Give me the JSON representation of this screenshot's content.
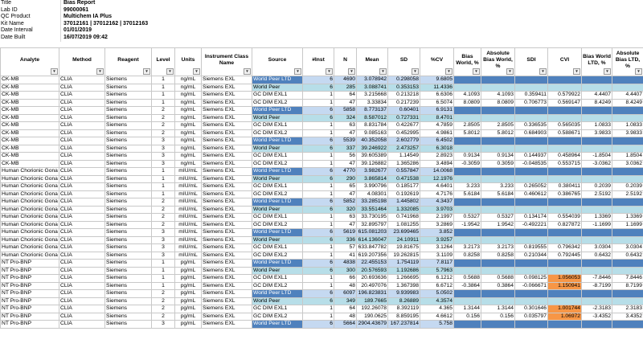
{
  "meta": [
    {
      "key": "Title",
      "value": "Bias Report"
    },
    {
      "key": "Lab ID",
      "value": "99000061"
    },
    {
      "key": "QC Product",
      "value": "Multichem IA Plus"
    },
    {
      "key": "Kit Name",
      "value": "37012161 | 37012162 | 37012163"
    },
    {
      "key": "Date Interval",
      "value": "01/01/2019"
    },
    {
      "key": "Date Built",
      "value": "16/07/2019 09:42"
    }
  ],
  "columns": [
    "Analyte",
    "Method",
    "Reagent",
    "Level",
    "Units",
    "Instrument Class Name",
    "Source",
    "#Inst",
    "N",
    "Mean",
    "SD",
    "%CV",
    "Bias World, %",
    "Absolute Bias World, %",
    "SDI",
    "CVI",
    "Bias World LTD, %",
    "Absolute Bias LTD, %"
  ],
  "colors": {
    "peer_ltd": "#4f81bd",
    "peer": "#b7dee8",
    "light": "#c5d9f1",
    "cvi_highlight": "#f79646"
  },
  "rows": [
    {
      "t": "ltd",
      "c": [
        "CK-MB",
        "CLIA",
        "Siemens",
        "1",
        "ng/mL",
        "Siemens EXL",
        "World Peer LTD",
        "6",
        "4690",
        "3.078942",
        "0.298058",
        "9.6805",
        "",
        "",
        "",
        "",
        "",
        ""
      ]
    },
    {
      "t": "peer",
      "c": [
        "CK-MB",
        "CLIA",
        "Siemens",
        "1",
        "ng/mL",
        "Siemens EXL",
        "World Peer",
        "6",
        "285",
        "3.088741",
        "0.353153",
        "11.4336",
        "",
        "",
        "",
        "",
        "",
        ""
      ]
    },
    {
      "t": "",
      "c": [
        "CK-MB",
        "CLIA",
        "Siemens",
        "1",
        "ng/mL",
        "Siemens EXL",
        "GC DIM EXL1",
        "1",
        "64",
        "3.215668",
        "0.213218",
        "6.6306",
        "4.1093",
        "4.1093",
        "0.359411",
        "0.579922",
        "4.4407",
        "4.4407"
      ]
    },
    {
      "t": "",
      "c": [
        "CK-MB",
        "CLIA",
        "Siemens",
        "1",
        "ng/mL",
        "Siemens EXL",
        "GC DIM EXL2",
        "1",
        "47",
        "3.33834",
        "0.217239",
        "6.5074",
        "8.0809",
        "8.0809",
        "0.706773",
        "0.569147",
        "8.4249",
        "8.4249"
      ]
    },
    {
      "t": "ltd",
      "c": [
        "CK-MB",
        "CLIA",
        "Siemens",
        "2",
        "ng/mL",
        "Siemens EXL",
        "World Peer LTD",
        "6",
        "5858",
        "8.773137",
        "0.60401",
        "6.9131",
        "",
        "",
        "",
        "",
        "",
        ""
      ]
    },
    {
      "t": "peer",
      "c": [
        "CK-MB",
        "CLIA",
        "Siemens",
        "2",
        "ng/mL",
        "Siemens EXL",
        "World Peer",
        "6",
        "324",
        "8.587012",
        "0.727331",
        "8.4701",
        "",
        "",
        "",
        "",
        "",
        ""
      ]
    },
    {
      "t": "",
      "c": [
        "CK-MB",
        "CLIA",
        "Siemens",
        "2",
        "ng/mL",
        "Siemens EXL",
        "GC DIM EXL1",
        "1",
        "63",
        "8.831784",
        "0.422677",
        "4.7859",
        "2.8505",
        "2.8505",
        "0.336535",
        "0.565035",
        "1.0833",
        "1.0833"
      ]
    },
    {
      "t": "",
      "c": [
        "CK-MB",
        "CLIA",
        "Siemens",
        "2",
        "ng/mL",
        "Siemens EXL",
        "GC DIM EXL2",
        "1",
        "47",
        "9.085163",
        "0.452995",
        "4.9861",
        "5.8012",
        "5.8012",
        "0.684903",
        "0.588671",
        "3.9833",
        "3.9833"
      ]
    },
    {
      "t": "ltd",
      "c": [
        "CK-MB",
        "CLIA",
        "Siemens",
        "3",
        "ng/mL",
        "Siemens EXL",
        "World Peer LTD",
        "6",
        "5539",
        "40.352058",
        "2.602779",
        "6.4502",
        "",
        "",
        "",
        "",
        "",
        ""
      ]
    },
    {
      "t": "peer",
      "c": [
        "CK-MB",
        "CLIA",
        "Siemens",
        "3",
        "ng/mL",
        "Siemens EXL",
        "World Peer",
        "6",
        "337",
        "39.246922",
        "2.473257",
        "6.3018",
        "",
        "",
        "",
        "",
        "",
        ""
      ]
    },
    {
      "t": "",
      "c": [
        "CK-MB",
        "CLIA",
        "Siemens",
        "3",
        "ng/mL",
        "Siemens EXL",
        "GC DIM EXL1",
        "1",
        "56",
        "39.605389",
        "1.14549",
        "2.8923",
        "0.9134",
        "0.9134",
        "0.144937",
        "0.458964",
        "-1.8504",
        "1.8504"
      ]
    },
    {
      "t": "",
      "c": [
        "CK-MB",
        "CLIA",
        "Siemens",
        "3",
        "ng/mL",
        "Siemens EXL",
        "GC DIM EXL2",
        "1",
        "47",
        "39.126882",
        "1.365286",
        "3.4894",
        "-0.3059",
        "0.3059",
        "-0.048535",
        "0.553715",
        "-3.0362",
        "3.0362"
      ]
    },
    {
      "t": "ltd",
      "c": [
        "Human Chorionic Gona",
        "CLIA",
        "Siemens",
        "1",
        "mIU/mL",
        "Siemens EXL",
        "World Peer LTD",
        "6",
        "4770",
        "3.982677",
        "0.557847",
        "14.0068",
        "",
        "",
        "",
        "",
        "",
        ""
      ]
    },
    {
      "t": "peer",
      "c": [
        "Human Chorionic Gona",
        "CLIA",
        "Siemens",
        "1",
        "mIU/mL",
        "Siemens EXL",
        "World Peer",
        "6",
        "290",
        "3.865814",
        "0.471538",
        "12.1976",
        "",
        "",
        "",
        "",
        "",
        ""
      ]
    },
    {
      "t": "",
      "c": [
        "Human Chorionic Gona",
        "CLIA",
        "Siemens",
        "1",
        "mIU/mL",
        "Siemens EXL",
        "GC DIM EXL1",
        "1",
        "65",
        "3.990796",
        "0.185177",
        "4.6401",
        "3.233",
        "3.233",
        "0.265052",
        "0.380411",
        "0.2039",
        "0.2039"
      ]
    },
    {
      "t": "",
      "c": [
        "Human Chorionic Gona",
        "CLIA",
        "Siemens",
        "1",
        "mIU/mL",
        "Siemens EXL",
        "GC DIM EXL2",
        "1",
        "47",
        "4.08301",
        "0.192619",
        "4.7176",
        "5.6184",
        "5.6184",
        "0.460612",
        "0.386765",
        "2.5192",
        "2.5192"
      ]
    },
    {
      "t": "ltd",
      "c": [
        "Human Chorionic Gona",
        "CLIA",
        "Siemens",
        "2",
        "mIU/mL",
        "Siemens EXL",
        "World Peer LTD",
        "6",
        "5852",
        "33.285198",
        "1.445802",
        "4.3437",
        "",
        "",
        "",
        "",
        "",
        ""
      ]
    },
    {
      "t": "peer",
      "c": [
        "Human Chorionic Gona",
        "CLIA",
        "Siemens",
        "2",
        "mIU/mL",
        "Siemens EXL",
        "World Peer",
        "6",
        "320",
        "33.551464",
        "1.332085",
        "3.9703",
        "",
        "",
        "",
        "",
        "",
        ""
      ]
    },
    {
      "t": "",
      "c": [
        "Human Chorionic Gona",
        "CLIA",
        "Siemens",
        "2",
        "mIU/mL",
        "Siemens EXL",
        "GC DIM EXL1",
        "1",
        "63",
        "33.730195",
        "0.741968",
        "2.1997",
        "0.5327",
        "0.5327",
        "0.134174",
        "0.554039",
        "1.3369",
        "1.3369"
      ]
    },
    {
      "t": "",
      "c": [
        "Human Chorionic Gona",
        "CLIA",
        "Siemens",
        "2",
        "mIU/mL",
        "Siemens EXL",
        "GC DIM EXL2",
        "1",
        "47",
        "32.895797",
        "1.081255",
        "3.2869",
        "-1.9542",
        "1.9542",
        "-0.492221",
        "0.827872",
        "-1.1699",
        "1.1699"
      ]
    },
    {
      "t": "ltd",
      "c": [
        "Human Chorionic Gona",
        "CLIA",
        "Siemens",
        "3",
        "mIU/mL",
        "Siemens EXL",
        "World Peer LTD",
        "6",
        "5619",
        "615.081203",
        "23.699465",
        "3.852",
        "",
        "",
        "",
        "",
        "",
        ""
      ]
    },
    {
      "t": "peer",
      "c": [
        "Human Chorionic Gona",
        "CLIA",
        "Siemens",
        "3",
        "mIU/mL",
        "Siemens EXL",
        "World Peer",
        "6",
        "336",
        "614.136047",
        "24.10911",
        "3.9257",
        "",
        "",
        "",
        "",
        "",
        ""
      ]
    },
    {
      "t": "",
      "c": [
        "Human Chorionic Gona",
        "CLIA",
        "Siemens",
        "3",
        "mIU/mL",
        "Siemens EXL",
        "GC DIM EXL1",
        "1",
        "57",
        "633.847782",
        "19.81675",
        "3.1264",
        "3.2173",
        "3.2173",
        "0.819555",
        "0.796342",
        "3.0304",
        "3.0304"
      ]
    },
    {
      "t": "",
      "c": [
        "Human Chorionic Gona",
        "CLIA",
        "Siemens",
        "3",
        "mIU/mL",
        "Siemens EXL",
        "GC DIM EXL2",
        "1",
        "41",
        "619.207356",
        "19.262815",
        "3.1109",
        "0.8258",
        "0.8258",
        "0.210344",
        "0.792445",
        "0.6432",
        "0.6432"
      ]
    },
    {
      "t": "ltd",
      "c": [
        "NT Pro-BNP",
        "CLIA",
        "Siemens",
        "1",
        "pg/mL",
        "Siemens EXL",
        "World Peer LTD",
        "6",
        "4838",
        "22.455153",
        "1.754119",
        "7.8117",
        "",
        "",
        "",
        "",
        "",
        ""
      ]
    },
    {
      "t": "peer",
      "c": [
        "NT Pro-BNP",
        "CLIA",
        "Siemens",
        "1",
        "pg/mL",
        "Siemens EXL",
        "World Peer",
        "6",
        "300",
        "20.576593",
        "1.192686",
        "5.7963",
        "",
        "",
        "",
        "",
        "",
        ""
      ]
    },
    {
      "t": "",
      "o": true,
      "c": [
        "NT Pro-BNP",
        "CLIA",
        "Siemens",
        "1",
        "pg/mL",
        "Siemens EXL",
        "GC DIM EXL1",
        "1",
        "66",
        "20.693636",
        "1.266695",
        "6.1212",
        "0.5688",
        "0.5688",
        "0.098125",
        "1.056053",
        "-7.8446",
        "7.8446"
      ]
    },
    {
      "t": "",
      "o": true,
      "c": [
        "NT Pro-BNP",
        "CLIA",
        "Siemens",
        "1",
        "pg/mL",
        "Siemens EXL",
        "GC DIM EXL2",
        "1",
        "48",
        "20.497076",
        "1.367398",
        "6.6712",
        "-0.3864",
        "0.3864",
        "-0.066671",
        "1.150941",
        "-8.7199",
        "8.7199"
      ]
    },
    {
      "t": "ltd",
      "c": [
        "NT Pro-BNP",
        "CLIA",
        "Siemens",
        "2",
        "pg/mL",
        "Siemens EXL",
        "World Peer LTD",
        "6",
        "6097",
        "196.823831",
        "9.939983",
        "5.0502",
        "",
        "",
        "",
        "",
        "",
        ""
      ]
    },
    {
      "t": "peer",
      "c": [
        "NT Pro-BNP",
        "CLIA",
        "Siemens",
        "2",
        "pg/mL",
        "Siemens EXL",
        "World Peer",
        "6",
        "349",
        "189.7665",
        "8.26889",
        "4.3574",
        "",
        "",
        "",
        "",
        "",
        ""
      ]
    },
    {
      "t": "",
      "o": true,
      "c": [
        "NT Pro-BNP",
        "CLIA",
        "Siemens",
        "2",
        "pg/mL",
        "Siemens EXL",
        "GC DIM EXL1",
        "1",
        "64",
        "192.26078",
        "8.392119",
        "4.365",
        "1.3144",
        "1.3144",
        "0.301646",
        "1.001744",
        "-2.3183",
        "2.3183"
      ]
    },
    {
      "t": "",
      "o": true,
      "c": [
        "NT Pro-BNP",
        "CLIA",
        "Siemens",
        "2",
        "pg/mL",
        "Siemens EXL",
        "GC DIM EXL2",
        "1",
        "48",
        "190.0625",
        "8.859195",
        "4.6612",
        "0.156",
        "0.156",
        "0.035797",
        "1.06972",
        "-3.4352",
        "3.4352"
      ]
    },
    {
      "t": "ltd",
      "c": [
        "NT Pro-BNP",
        "CLIA",
        "Siemens",
        "3",
        "pg/mL",
        "Siemens EXL",
        "World Peer LTD",
        "6",
        "5664",
        "2904.43679",
        "167.237814",
        "5.758",
        "",
        "",
        "",
        "",
        "",
        ""
      ]
    }
  ]
}
